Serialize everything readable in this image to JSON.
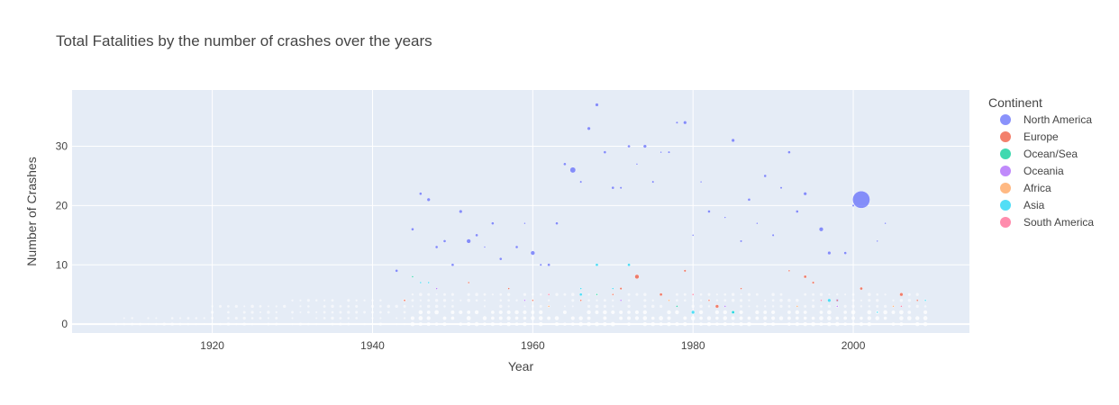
{
  "chart_data": {
    "type": "scatter",
    "title": "Total Fatalities by the number of crashes over the years",
    "xlabel": "Year",
    "ylabel": "Number of Crashes",
    "xlim": [
      1902.5,
      2014.5
    ],
    "ylim": [
      -1.5,
      39.5
    ],
    "xticks": [
      1920,
      1940,
      1960,
      1980,
      2000
    ],
    "yticks": [
      0,
      10,
      20,
      30
    ],
    "grid": true,
    "legend": {
      "title": "Continent",
      "position": "right"
    },
    "series": [
      {
        "name": "North America",
        "color": "#636efa",
        "points": [
          [
            1943,
            9,
            1
          ],
          [
            1945,
            16,
            1
          ],
          [
            1946,
            22,
            1
          ],
          [
            1947,
            21,
            1.2
          ],
          [
            1948,
            13,
            1
          ],
          [
            1949,
            14,
            1
          ],
          [
            1950,
            10,
            1
          ],
          [
            1951,
            19,
            1.2
          ],
          [
            1952,
            14,
            1.5
          ],
          [
            1953,
            15,
            1
          ],
          [
            1954,
            13,
            0.6
          ],
          [
            1955,
            17,
            1
          ],
          [
            1956,
            11,
            1
          ],
          [
            1958,
            13,
            1
          ],
          [
            1959,
            17,
            0.6
          ],
          [
            1960,
            12,
            1.5
          ],
          [
            1961,
            10,
            0.8
          ],
          [
            1962,
            10,
            1
          ],
          [
            1963,
            17,
            1
          ],
          [
            1964,
            27,
            1
          ],
          [
            1965,
            26,
            2
          ],
          [
            1966,
            24,
            0.8
          ],
          [
            1967,
            33,
            1.2
          ],
          [
            1968,
            37,
            1.2
          ],
          [
            1969,
            29,
            1
          ],
          [
            1970,
            23,
            1
          ],
          [
            1971,
            23,
            0.8
          ],
          [
            1972,
            30,
            1
          ],
          [
            1973,
            27,
            0.6
          ],
          [
            1974,
            30,
            1.2
          ],
          [
            1975,
            24,
            0.8
          ],
          [
            1976,
            29,
            0.6
          ],
          [
            1977,
            29,
            0.8
          ],
          [
            1978,
            34,
            0.8
          ],
          [
            1979,
            34,
            1.2
          ],
          [
            1980,
            15,
            0.5
          ],
          [
            1981,
            24,
            0.5
          ],
          [
            1982,
            19,
            1
          ],
          [
            1984,
            18,
            0.5
          ],
          [
            1985,
            31,
            1.2
          ],
          [
            1986,
            14,
            0.8
          ],
          [
            1987,
            21,
            1
          ],
          [
            1988,
            17,
            0.5
          ],
          [
            1989,
            25,
            1
          ],
          [
            1990,
            15,
            0.8
          ],
          [
            1991,
            23,
            0.8
          ],
          [
            1992,
            29,
            1
          ],
          [
            1993,
            19,
            1
          ],
          [
            1994,
            22,
            1.2
          ],
          [
            1996,
            16,
            1.5
          ],
          [
            1997,
            12,
            1.2
          ],
          [
            1998,
            4,
            1
          ],
          [
            1999,
            12,
            1
          ],
          [
            2000,
            20,
            0.8
          ],
          [
            2001,
            21,
            6
          ],
          [
            2003,
            14,
            0.5
          ],
          [
            2004,
            17,
            0.5
          ]
        ]
      },
      {
        "name": "Europe",
        "color": "#ef553b",
        "points": [
          [
            1944,
            4,
            0.7
          ],
          [
            1952,
            7,
            0.5
          ],
          [
            1957,
            6,
            0.5
          ],
          [
            1960,
            4,
            0.5
          ],
          [
            1966,
            4,
            0.5
          ],
          [
            1970,
            5,
            0.5
          ],
          [
            1971,
            6,
            0.8
          ],
          [
            1973,
            8,
            1.5
          ],
          [
            1976,
            5,
            1
          ],
          [
            1979,
            9,
            0.8
          ],
          [
            1982,
            4,
            0.5
          ],
          [
            1983,
            3,
            1.2
          ],
          [
            1986,
            6,
            0.6
          ],
          [
            1992,
            9,
            0.6
          ],
          [
            1994,
            8,
            1
          ],
          [
            1995,
            7,
            0.8
          ],
          [
            1998,
            4,
            0.6
          ],
          [
            2001,
            6,
            1
          ],
          [
            2006,
            5,
            1.2
          ],
          [
            2008,
            4,
            0.5
          ]
        ]
      },
      {
        "name": "Ocean/Sea",
        "color": "#00cc96",
        "points": [
          [
            1945,
            8,
            0.6
          ],
          [
            1968,
            5,
            0.5
          ],
          [
            1978,
            3,
            0.5
          ],
          [
            1985,
            2,
            1.2
          ]
        ]
      },
      {
        "name": "Oceania",
        "color": "#ab63fa",
        "points": [
          [
            1948,
            6,
            0.5
          ],
          [
            1959,
            4,
            0.5
          ],
          [
            1971,
            4,
            0.5
          ],
          [
            1984,
            3,
            0.5
          ],
          [
            1998,
            3,
            0.5
          ]
        ]
      },
      {
        "name": "Africa",
        "color": "#ffa15a",
        "points": [
          [
            1962,
            3,
            0.5
          ],
          [
            1977,
            4,
            0.5
          ],
          [
            1993,
            3,
            0.5
          ],
          [
            2005,
            3,
            0.6
          ]
        ]
      },
      {
        "name": "Asia",
        "color": "#19d3f3",
        "points": [
          [
            1946,
            7,
            0.6
          ],
          [
            1947,
            7,
            0.5
          ],
          [
            1966,
            6,
            0.6
          ],
          [
            1966,
            5,
            1
          ],
          [
            1968,
            10,
            1
          ],
          [
            1970,
            6,
            0.6
          ],
          [
            1972,
            10,
            1
          ],
          [
            1980,
            2,
            1.2
          ],
          [
            1985,
            2,
            1
          ],
          [
            1997,
            4,
            1.2
          ],
          [
            2003,
            2,
            0.6
          ],
          [
            2009,
            4,
            0.6
          ]
        ]
      },
      {
        "name": "South America",
        "color": "#ff6692",
        "points": [
          [
            1962,
            5,
            0.5
          ],
          [
            1980,
            5,
            0.5
          ],
          [
            1996,
            4,
            0.6
          ],
          [
            2006,
            3,
            0.5
          ]
        ]
      }
    ]
  }
}
